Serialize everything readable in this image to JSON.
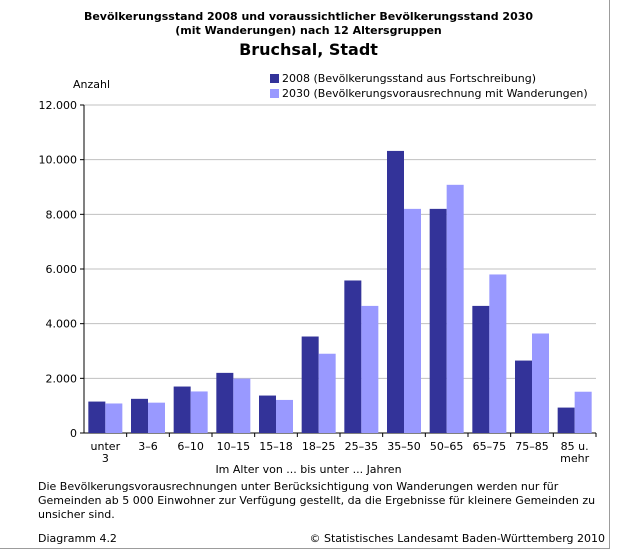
{
  "page": {
    "title_line1": "Bevölkerungsstand 2008 und voraussichtlicher Bevölkerungsstand 2030",
    "title_line2": "(mit Wanderungen) nach 12 Altersgruppen",
    "subtitle": "Bruchsal, Stadt",
    "footnote": "Die Bevölkerungsvorausrechnungen unter Berücksichtigung von Wanderungen werden nur für Gemeinden ab 5 000 Einwohner zur Verfügung gestellt, da die Ergebnisse für kleinere Gemeinden zu unsicher sind.",
    "diagram_label": "Diagramm 4.2",
    "copyright": "© Statistisches Landesamt Baden-Württemberg 2010"
  },
  "chart_data": {
    "type": "bar",
    "title": "Bevölkerungsstand 2008 und voraussichtlicher Bevölkerungsstand 2030 (mit Wanderungen) nach 12 Altersgruppen",
    "subtitle": "Bruchsal, Stadt",
    "ylabel": "Anzahl",
    "xlabel": "Im Alter von ... bis unter ... Jahren",
    "ylim": [
      0,
      12000
    ],
    "yticks": [
      0,
      2000,
      4000,
      6000,
      8000,
      10000,
      12000
    ],
    "ytick_labels": [
      "0",
      "2.000",
      "4.000",
      "6.000",
      "8.000",
      "10.000",
      "12.000"
    ],
    "grid": "horizontal",
    "legend_position": "top-right",
    "categories": [
      [
        "unter",
        "3"
      ],
      [
        "3–6"
      ],
      [
        "6–10"
      ],
      [
        "10–15"
      ],
      [
        "15–18"
      ],
      [
        "18–25"
      ],
      [
        "25–35"
      ],
      [
        "35–50"
      ],
      [
        "50–65"
      ],
      [
        "65–75"
      ],
      [
        "75–85"
      ],
      [
        "85 u.",
        "mehr"
      ]
    ],
    "series": [
      {
        "name": "2008 (Bevölkerungsstand aus Fortschreibung)",
        "color": "#333399",
        "values": [
          1150,
          1250,
          1700,
          2200,
          1370,
          3530,
          5580,
          10320,
          8200,
          4650,
          2650,
          930
        ]
      },
      {
        "name": "2030 (Bevölkerungsvorausrechnung mit Wanderungen)",
        "color": "#9999ff",
        "values": [
          1080,
          1110,
          1520,
          1990,
          1210,
          2900,
          4650,
          8200,
          9080,
          5800,
          3640,
          1510
        ]
      }
    ]
  }
}
